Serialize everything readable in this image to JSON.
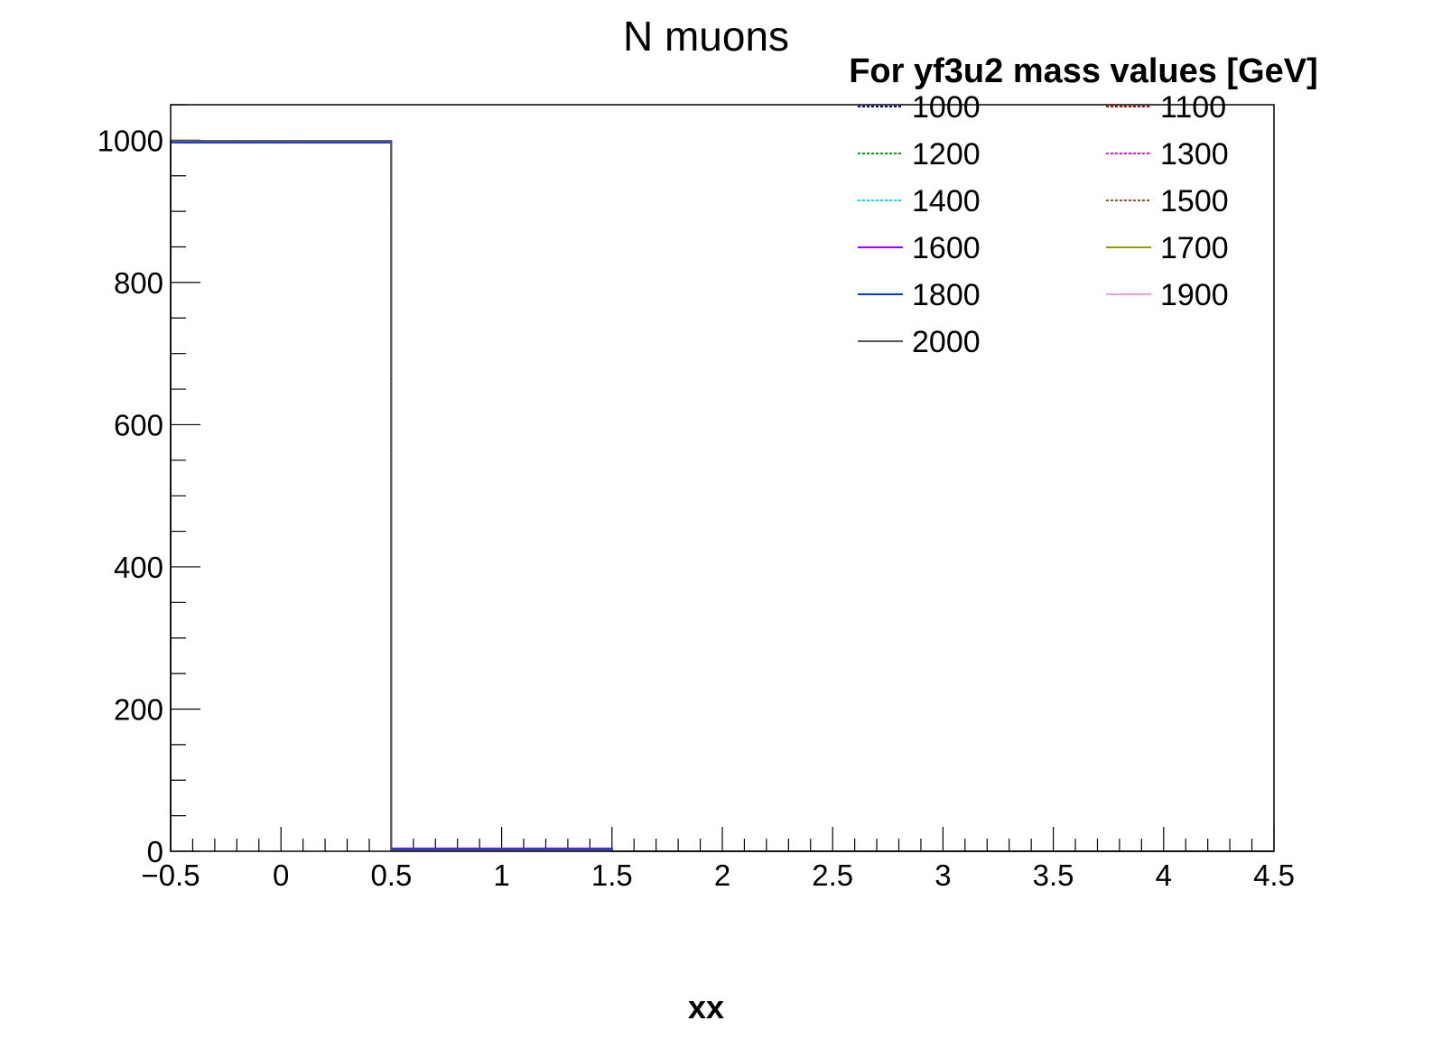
{
  "chart_data": {
    "type": "histogram",
    "title": "N muons",
    "xlabel": "xx",
    "ylabel": "",
    "xlim": [
      -0.5,
      4.5
    ],
    "ylim": [
      0,
      1050
    ],
    "x_ticks": [
      "−0.5",
      "0",
      "0.5",
      "1",
      "1.5",
      "2",
      "2.5",
      "3",
      "3.5",
      "4",
      "4.5"
    ],
    "y_ticks": [
      "0",
      "200",
      "400",
      "600",
      "800",
      "1000"
    ],
    "bin_edges": [
      -0.5,
      0.5,
      1.5,
      2.5,
      3.5,
      4.5
    ],
    "legend": {
      "title": "For yf3u2 mass values [GeV]",
      "position": "top-right",
      "columns": 2
    },
    "series": [
      {
        "name": "1000",
        "color": "#0000cc",
        "dashed": true,
        "values": [
          997,
          3,
          0,
          0,
          0
        ]
      },
      {
        "name": "1100",
        "color": "#cc0000",
        "dashed": true,
        "values": [
          997,
          3,
          0,
          0,
          0
        ]
      },
      {
        "name": "1200",
        "color": "#00aa00",
        "dashed": true,
        "values": [
          997,
          3,
          0,
          0,
          0
        ]
      },
      {
        "name": "1300",
        "color": "#ff00ff",
        "dashed": true,
        "values": [
          997,
          3,
          0,
          0,
          0
        ]
      },
      {
        "name": "1400",
        "color": "#00e5e5",
        "dashed": true,
        "values": [
          997,
          3,
          0,
          0,
          0
        ]
      },
      {
        "name": "1500",
        "color": "#a0522d",
        "dashed": true,
        "values": [
          997,
          3,
          0,
          0,
          0
        ]
      },
      {
        "name": "1600",
        "color": "#9900ff",
        "dashed": false,
        "values": [
          997,
          4,
          0,
          0,
          0
        ]
      },
      {
        "name": "1700",
        "color": "#999900",
        "dashed": false,
        "values": [
          997,
          3,
          0,
          0,
          0
        ]
      },
      {
        "name": "1800",
        "color": "#0033ff",
        "dashed": false,
        "values": [
          997,
          3,
          0,
          0,
          0
        ]
      },
      {
        "name": "1900",
        "color": "#ff99cc",
        "dashed": false,
        "values": [
          999,
          1,
          0,
          0,
          0
        ]
      },
      {
        "name": "2000",
        "color": "#555555",
        "dashed": false,
        "values": [
          999,
          1,
          0,
          0,
          0
        ]
      }
    ]
  }
}
